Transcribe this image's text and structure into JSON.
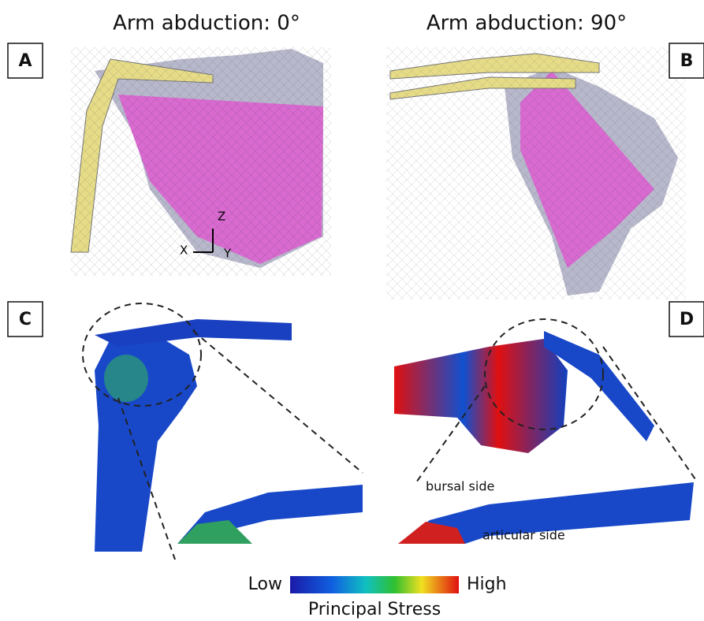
{
  "headers": [
    "Arm abduction: 0°",
    "Arm abduction: 90°"
  ],
  "panels": [
    {
      "label": "A"
    },
    {
      "label": "B"
    },
    {
      "label": "C"
    },
    {
      "label": "D",
      "annotations": [
        "bursal side",
        "articular side"
      ]
    }
  ],
  "axes": {
    "x": "X",
    "y": "Y",
    "z": "Z"
  },
  "colorbar": {
    "low": "Low",
    "high": "High",
    "title": "Principal Stress"
  }
}
